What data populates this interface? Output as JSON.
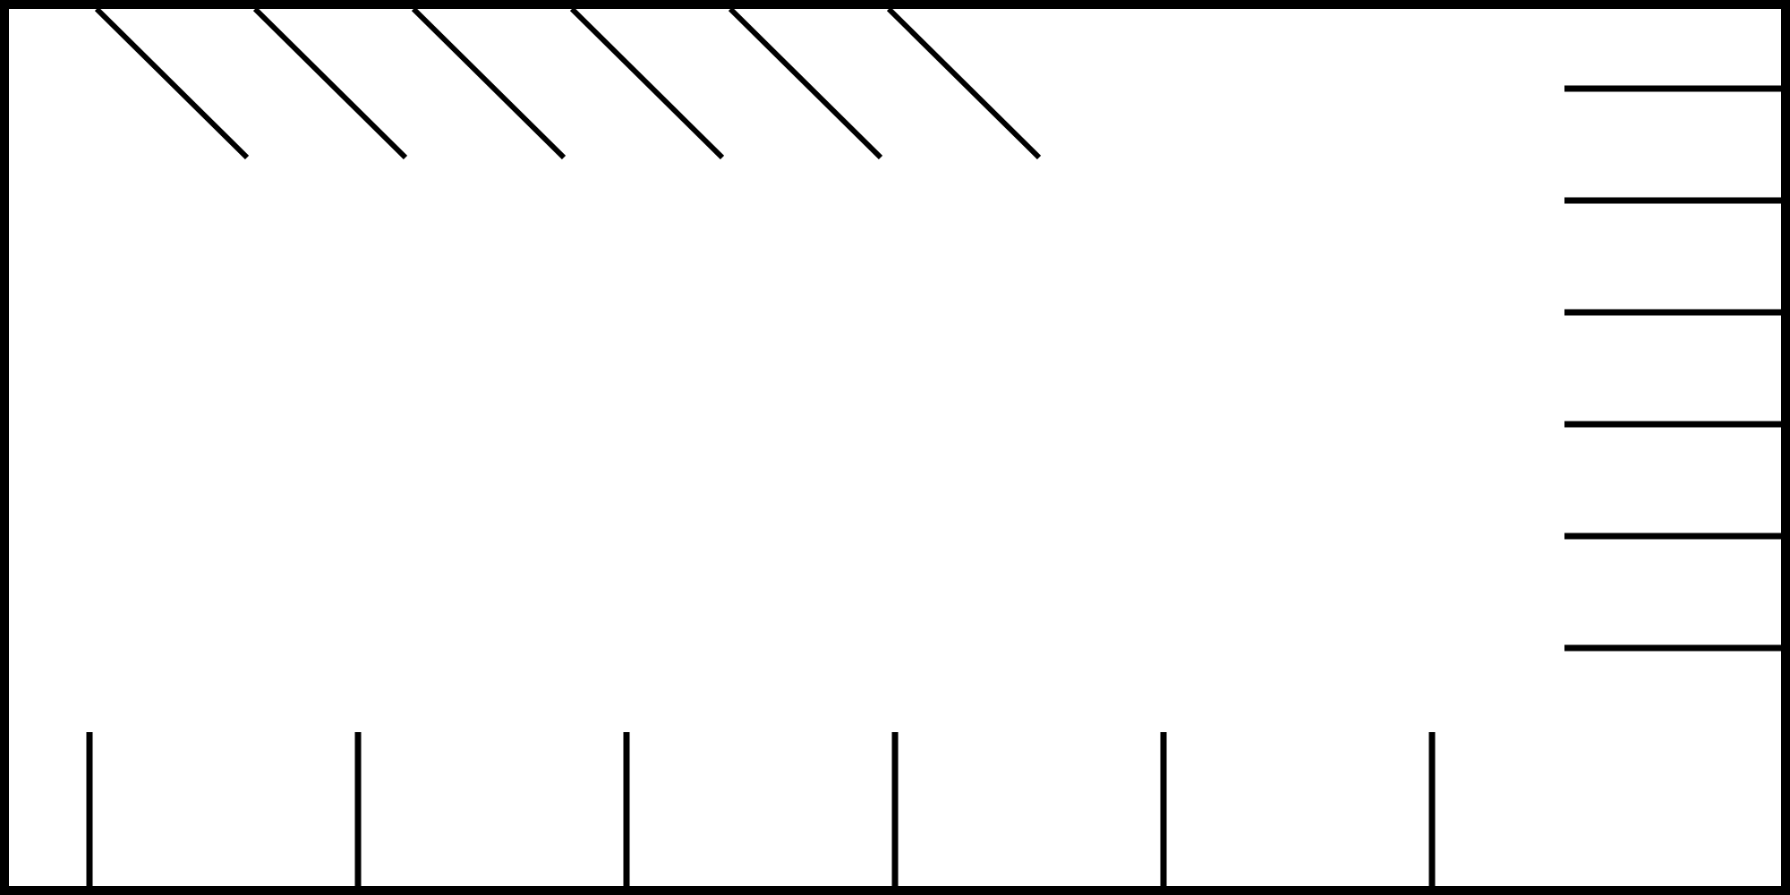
{
  "colors": {
    "background": "#ffffff",
    "stroke": "#000000"
  },
  "marks": {
    "top_diagonal_strokes": 6,
    "right_horizontal_ticks": 6,
    "bottom_vertical_ticks": 6
  }
}
